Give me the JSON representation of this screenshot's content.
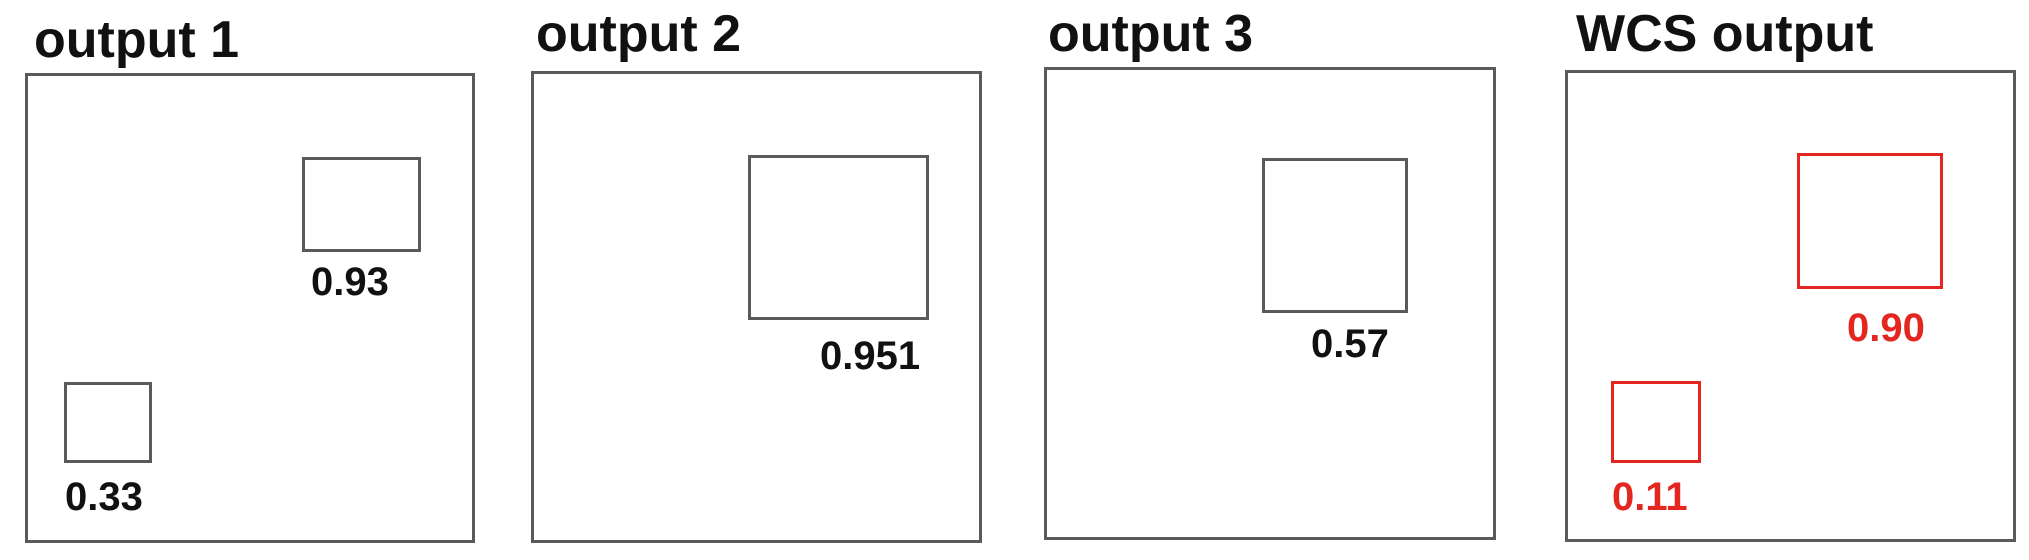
{
  "panels": [
    {
      "title": "output 1",
      "detections": [
        {
          "score": "0.93"
        },
        {
          "score": "0.33"
        }
      ]
    },
    {
      "title": "output 2",
      "detections": [
        {
          "score": "0.951"
        }
      ]
    },
    {
      "title": "output 3",
      "detections": [
        {
          "score": "0.57"
        }
      ]
    },
    {
      "title": "WCS output",
      "highlight_color": "#e3261f",
      "detections": [
        {
          "score": "0.90"
        },
        {
          "score": "0.11"
        }
      ]
    }
  ]
}
